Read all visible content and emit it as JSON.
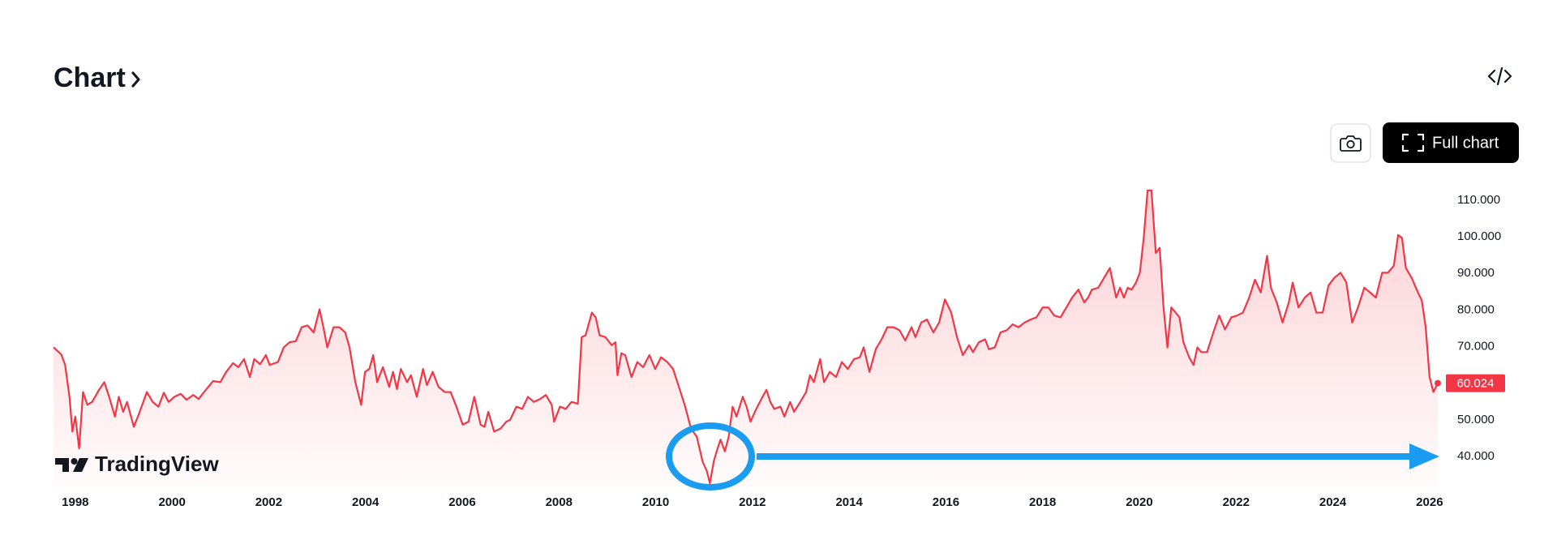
{
  "header": {
    "title": "Chart"
  },
  "buttons": {
    "full_chart": "Full chart"
  },
  "watermark": "TradingView",
  "chart_data": {
    "type": "line",
    "color": "#f23645",
    "x": [
      1997.55,
      1997.71,
      1997.79,
      1997.88,
      1997.94,
      1998,
      1998.08,
      1998.16,
      1998.25,
      1998.35,
      1998.49,
      1998.6,
      1998.7,
      1998.82,
      1998.9,
      1998.99,
      1999.07,
      1999.21,
      1999.31,
      1999.48,
      1999.6,
      1999.72,
      1999.83,
      1999.93,
      2000.05,
      2000.18,
      2000.3,
      2000.44,
      2000.55,
      2000.65,
      2000.75,
      2000.85,
      2001,
      2001.12,
      2001.26,
      2001.37,
      2001.49,
      2001.61,
      2001.7,
      2001.82,
      2001.94,
      2002.02,
      2002.19,
      2002.31,
      2002.43,
      2002.56,
      2002.68,
      2002.8,
      2002.93,
      2003.05,
      2003.13,
      2003.21,
      2003.34,
      2003.46,
      2003.58,
      2003.67,
      2003.79,
      2003.91,
      2003.99,
      2004.08,
      2004.16,
      2004.24,
      2004.36,
      2004.49,
      2004.57,
      2004.65,
      2004.73,
      2004.86,
      2004.94,
      2005.06,
      2005.19,
      2005.27,
      2005.39,
      2005.51,
      2005.64,
      2005.76,
      2005.88,
      2006.01,
      2006.13,
      2006.25,
      2006.38,
      2006.46,
      2006.54,
      2006.66,
      2006.79,
      2006.91,
      2006.99,
      2007.12,
      2007.24,
      2007.36,
      2007.48,
      2007.61,
      2007.73,
      2007.85,
      2007.9,
      2008.02,
      2008.14,
      2008.26,
      2008.39,
      2008.47,
      2008.55,
      2008.68,
      2008.76,
      2008.84,
      2008.96,
      2009.09,
      2009.17,
      2009.21,
      2009.29,
      2009.37,
      2009.5,
      2009.62,
      2009.74,
      2009.87,
      2009.99,
      2010.11,
      2010.24,
      2010.36,
      2010.48,
      2010.61,
      2010.73,
      2010.85,
      2010.97,
      2011.06,
      2011.12,
      2011.2,
      2011.26,
      2011.34,
      2011.43,
      2011.51,
      2011.59,
      2011.67,
      2011.8,
      2011.88,
      2011.96,
      2012.08,
      2012.21,
      2012.29,
      2012.37,
      2012.45,
      2012.58,
      2012.66,
      2012.78,
      2012.86,
      2012.99,
      2013.11,
      2013.19,
      2013.27,
      2013.4,
      2013.48,
      2013.6,
      2013.73,
      2013.85,
      2013.97,
      2014.1,
      2014.22,
      2014.3,
      2014.42,
      2014.55,
      2014.67,
      2014.79,
      2014.92,
      2015.04,
      2015.16,
      2015.29,
      2015.37,
      2015.49,
      2015.61,
      2015.74,
      2015.86,
      2015.98,
      2016.11,
      2016.23,
      2016.35,
      2016.48,
      2016.56,
      2016.68,
      2016.81,
      2016.89,
      2017.01,
      2017.13,
      2017.26,
      2017.38,
      2017.5,
      2017.63,
      2017.75,
      2017.87,
      2018,
      2018.12,
      2018.24,
      2018.37,
      2018.49,
      2018.61,
      2018.74,
      2018.86,
      2018.94,
      2019.02,
      2019.15,
      2019.27,
      2019.39,
      2019.52,
      2019.6,
      2019.68,
      2019.76,
      2019.84,
      2019.93,
      2020.01,
      2020.09,
      2020.17,
      2020.25,
      2020.34,
      2020.42,
      2020.5,
      2020.58,
      2020.66,
      2020.75,
      2020.83,
      2020.91,
      2021.03,
      2021.12,
      2021.2,
      2021.28,
      2021.4,
      2021.53,
      2021.65,
      2021.77,
      2021.9,
      2022.02,
      2022.14,
      2022.27,
      2022.39,
      2022.51,
      2022.64,
      2022.72,
      2022.84,
      2022.96,
      2023.09,
      2023.17,
      2023.29,
      2023.42,
      2023.54,
      2023.66,
      2023.79,
      2023.91,
      2024.03,
      2024.16,
      2024.28,
      2024.4,
      2024.52,
      2024.65,
      2024.77,
      2024.89,
      2025.02,
      2025.14,
      2025.26,
      2025.35,
      2025.43,
      2025.51,
      2025.63,
      2025.76,
      2025.84,
      2025.92,
      2026,
      2026.08,
      2026.17
    ],
    "values": [
      69.8,
      67.9,
      65.0,
      56.3,
      46.8,
      50.9,
      42.2,
      57.6,
      54.1,
      54.9,
      58.2,
      60.3,
      56.3,
      50.9,
      56.3,
      52.2,
      54.9,
      48.1,
      51.4,
      57.6,
      54.9,
      53.6,
      57.4,
      54.9,
      56.3,
      57.1,
      55.5,
      56.8,
      55.7,
      57.4,
      59.0,
      60.6,
      60.3,
      63.1,
      65.5,
      64.4,
      66.6,
      61.7,
      66.6,
      65.2,
      67.7,
      65.0,
      65.8,
      69.8,
      71.2,
      71.5,
      75.3,
      75.8,
      73.9,
      80.2,
      75.3,
      69.8,
      75.3,
      75.3,
      73.9,
      69.8,
      60.3,
      54.1,
      63.1,
      63.9,
      67.7,
      60.3,
      64.4,
      59.0,
      63.1,
      58.4,
      63.9,
      60.3,
      62.2,
      56.3,
      63.9,
      59.5,
      63.1,
      59.0,
      57.6,
      57.6,
      53.6,
      48.7,
      49.5,
      56.3,
      48.7,
      48.1,
      52.2,
      46.8,
      47.6,
      49.5,
      50.0,
      53.6,
      53.0,
      56.3,
      54.9,
      55.7,
      56.8,
      54.1,
      49.5,
      53.6,
      53.0,
      54.9,
      54.4,
      72.6,
      73.1,
      79.3,
      78.0,
      73.1,
      72.6,
      70.4,
      71.2,
      62.2,
      68.2,
      67.7,
      61.7,
      65.8,
      64.4,
      67.7,
      63.9,
      67.1,
      65.8,
      63.9,
      59.0,
      53.6,
      47.6,
      45.4,
      38.6,
      35.9,
      32.7,
      38.6,
      41.4,
      44.6,
      41.4,
      45.4,
      53.6,
      50.9,
      56.3,
      53.6,
      49.5,
      53.0,
      56.3,
      58.2,
      54.9,
      53.0,
      53.6,
      50.9,
      54.9,
      52.2,
      54.9,
      57.6,
      62.2,
      60.3,
      66.6,
      60.3,
      63.1,
      61.7,
      65.8,
      63.9,
      66.6,
      67.1,
      69.8,
      63.1,
      69.3,
      72.0,
      75.3,
      75.3,
      74.5,
      71.7,
      75.3,
      72.6,
      76.6,
      77.4,
      73.9,
      76.6,
      82.9,
      79.3,
      72.6,
      67.7,
      70.4,
      68.5,
      71.2,
      72.0,
      69.3,
      69.8,
      73.9,
      74.5,
      76.1,
      75.3,
      76.6,
      77.4,
      78.0,
      80.7,
      80.7,
      78.5,
      78.0,
      80.7,
      83.4,
      85.6,
      82.1,
      83.4,
      85.6,
      86.1,
      88.8,
      91.5,
      83.4,
      86.1,
      83.4,
      86.1,
      85.6,
      87.5,
      90.2,
      99.7,
      112.7,
      112.7,
      95.6,
      97.0,
      80.7,
      69.8,
      80.7,
      79.3,
      78.0,
      71.2,
      67.1,
      65.0,
      69.8,
      68.5,
      68.5,
      73.9,
      78.5,
      74.7,
      78.0,
      78.5,
      79.3,
      83.4,
      88.3,
      84.8,
      94.8,
      86.1,
      82.1,
      76.6,
      82.1,
      87.5,
      80.7,
      83.4,
      84.8,
      79.3,
      79.3,
      86.7,
      88.8,
      90.2,
      87.5,
      76.6,
      80.7,
      86.1,
      84.8,
      83.4,
      90.2,
      90.2,
      92.1,
      100.5,
      99.7,
      91.5,
      88.8,
      84.8,
      82.6,
      75.3,
      61.7,
      57.6,
      60.024
    ],
    "xlim": [
      1997.55,
      2026.17
    ],
    "ylim": [
      31.8,
      113.1
    ],
    "xticks": [
      1998,
      2000,
      2002,
      2004,
      2006,
      2008,
      2010,
      2012,
      2014,
      2016,
      2018,
      2020,
      2022,
      2024,
      2026
    ],
    "yticks": [
      {
        "value": 40,
        "label": "40.000"
      },
      {
        "value": 50,
        "label": "50.000"
      },
      {
        "value": 60,
        "label": "60.000"
      },
      {
        "value": 70,
        "label": "70.000"
      },
      {
        "value": 80,
        "label": "80.000"
      },
      {
        "value": 90,
        "label": "90.000"
      },
      {
        "value": 100,
        "label": "100.000"
      },
      {
        "value": 110,
        "label": "110.000"
      }
    ],
    "grid": false
  }
}
